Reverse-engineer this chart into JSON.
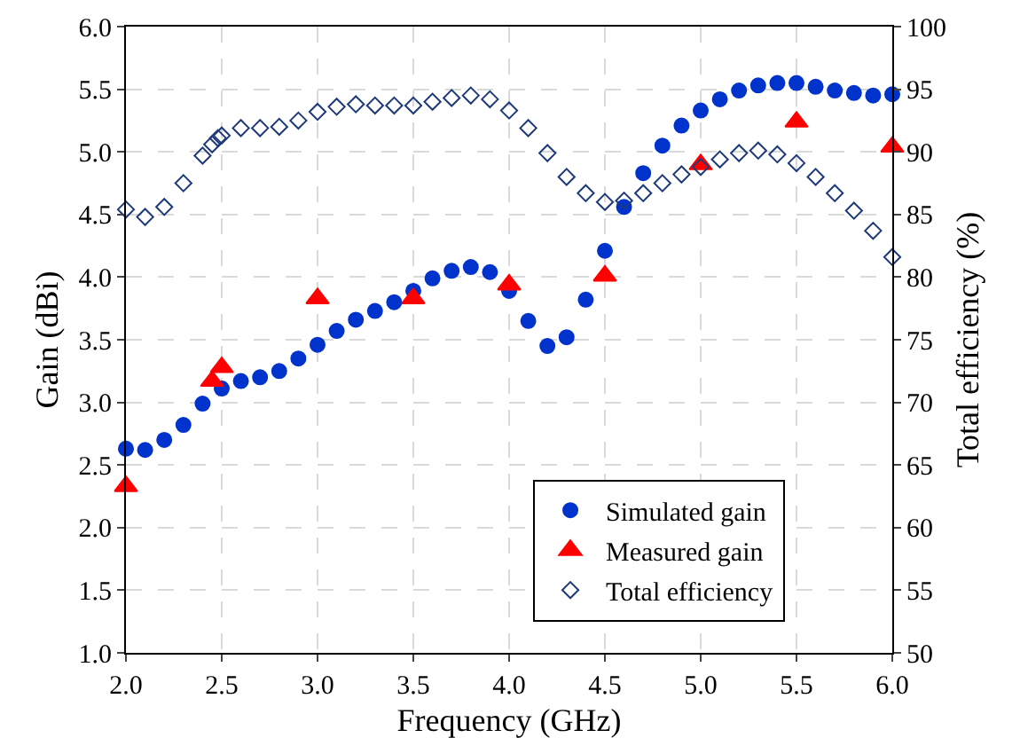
{
  "chart_data": {
    "type": "scatter",
    "xlabel": "Frequency (GHz)",
    "ylabel": "Gain (dBi)",
    "y2label": "Total efficiency (%)",
    "xlim": [
      2.0,
      6.0
    ],
    "xticks": [
      {
        "value": 2,
        "label": "2.0"
      },
      {
        "value": 2.5,
        "label": "2.5"
      },
      {
        "value": 3,
        "label": "3.0"
      },
      {
        "value": 3.5,
        "label": "3.5"
      },
      {
        "value": 4,
        "label": "4.0"
      },
      {
        "value": 4.5,
        "label": "4.5"
      },
      {
        "value": 5,
        "label": "5.0"
      },
      {
        "value": 5.5,
        "label": "5.5"
      },
      {
        "value": 6,
        "label": "6.0"
      }
    ],
    "ylim": [
      1.0,
      6.0
    ],
    "yticks": [
      {
        "value": 1,
        "label": "1.0"
      },
      {
        "value": 1.5,
        "label": "1.5"
      },
      {
        "value": 2,
        "label": "2.0"
      },
      {
        "value": 2.5,
        "label": "2.5"
      },
      {
        "value": 3,
        "label": "3.0"
      },
      {
        "value": 3.5,
        "label": "3.5"
      },
      {
        "value": 4,
        "label": "4.0"
      },
      {
        "value": 4.5,
        "label": "4.5"
      },
      {
        "value": 5,
        "label": "5.0"
      },
      {
        "value": 5.5,
        "label": "5.5"
      },
      {
        "value": 6,
        "label": "6.0"
      }
    ],
    "y2lim": [
      50,
      100
    ],
    "y2ticks": [
      50,
      55,
      60,
      65,
      70,
      75,
      80,
      85,
      90,
      95,
      100
    ],
    "grid": true,
    "legend": "bottom right",
    "series": [
      {
        "name": "Simulated gain",
        "color": "#0033cc",
        "marker": "circle",
        "x": [
          2.0,
          2.1,
          2.2,
          2.3,
          2.4,
          2.5,
          2.6,
          2.7,
          2.8,
          2.9,
          3.0,
          3.1,
          3.2,
          3.3,
          3.4,
          3.5,
          3.6,
          3.7,
          3.8,
          3.9,
          4.0,
          4.1,
          4.2,
          4.3,
          4.4,
          4.5,
          4.6,
          4.7,
          4.8,
          4.9,
          5.0,
          5.1,
          5.2,
          5.3,
          5.4,
          5.5,
          5.6,
          5.7,
          5.8,
          5.9,
          6.0
        ],
        "values": [
          2.63,
          2.62,
          2.7,
          2.82,
          2.99,
          3.11,
          3.17,
          3.2,
          3.25,
          3.35,
          3.46,
          3.57,
          3.66,
          3.73,
          3.8,
          3.89,
          3.99,
          4.05,
          4.08,
          4.04,
          3.89,
          3.65,
          3.45,
          3.52,
          3.82,
          4.21,
          4.56,
          4.83,
          5.05,
          5.21,
          5.33,
          5.42,
          5.49,
          5.53,
          5.55,
          5.55,
          5.52,
          5.49,
          5.47,
          5.45,
          5.46
        ]
      },
      {
        "name": "Measured gain",
        "color": "#ff0000",
        "marker": "triangle",
        "x": [
          2.0,
          2.45,
          2.5,
          3.0,
          3.5,
          4.0,
          4.5,
          5.0,
          5.5,
          6.0
        ],
        "values": [
          2.33,
          3.17,
          3.28,
          3.83,
          3.83,
          3.94,
          4.01,
          4.9,
          5.24,
          5.04
        ]
      },
      {
        "name": "Total efficiency",
        "color": "#1f3a7a",
        "marker": "diamond",
        "axis": "y2",
        "x": [
          2.0,
          2.1,
          2.2,
          2.3,
          2.4,
          2.45,
          2.48,
          2.5,
          2.6,
          2.7,
          2.8,
          2.9,
          3.0,
          3.1,
          3.2,
          3.3,
          3.4,
          3.5,
          3.6,
          3.7,
          3.8,
          3.9,
          4.0,
          4.1,
          4.2,
          4.3,
          4.4,
          4.5,
          4.6,
          4.7,
          4.8,
          4.9,
          5.0,
          5.1,
          5.2,
          5.3,
          5.4,
          5.5,
          5.6,
          5.7,
          5.8,
          5.9,
          6.0
        ],
        "values": [
          85.4,
          84.8,
          85.6,
          87.5,
          89.7,
          90.6,
          91.1,
          91.3,
          91.9,
          91.9,
          92.0,
          92.5,
          93.2,
          93.6,
          93.8,
          93.7,
          93.7,
          93.7,
          94.0,
          94.3,
          94.5,
          94.2,
          93.3,
          91.9,
          89.9,
          88.0,
          86.7,
          86.0,
          86.1,
          86.7,
          87.5,
          88.2,
          88.8,
          89.4,
          89.9,
          90.1,
          89.8,
          89.1,
          88.0,
          86.7,
          85.3,
          83.7,
          81.6
        ]
      }
    ]
  }
}
